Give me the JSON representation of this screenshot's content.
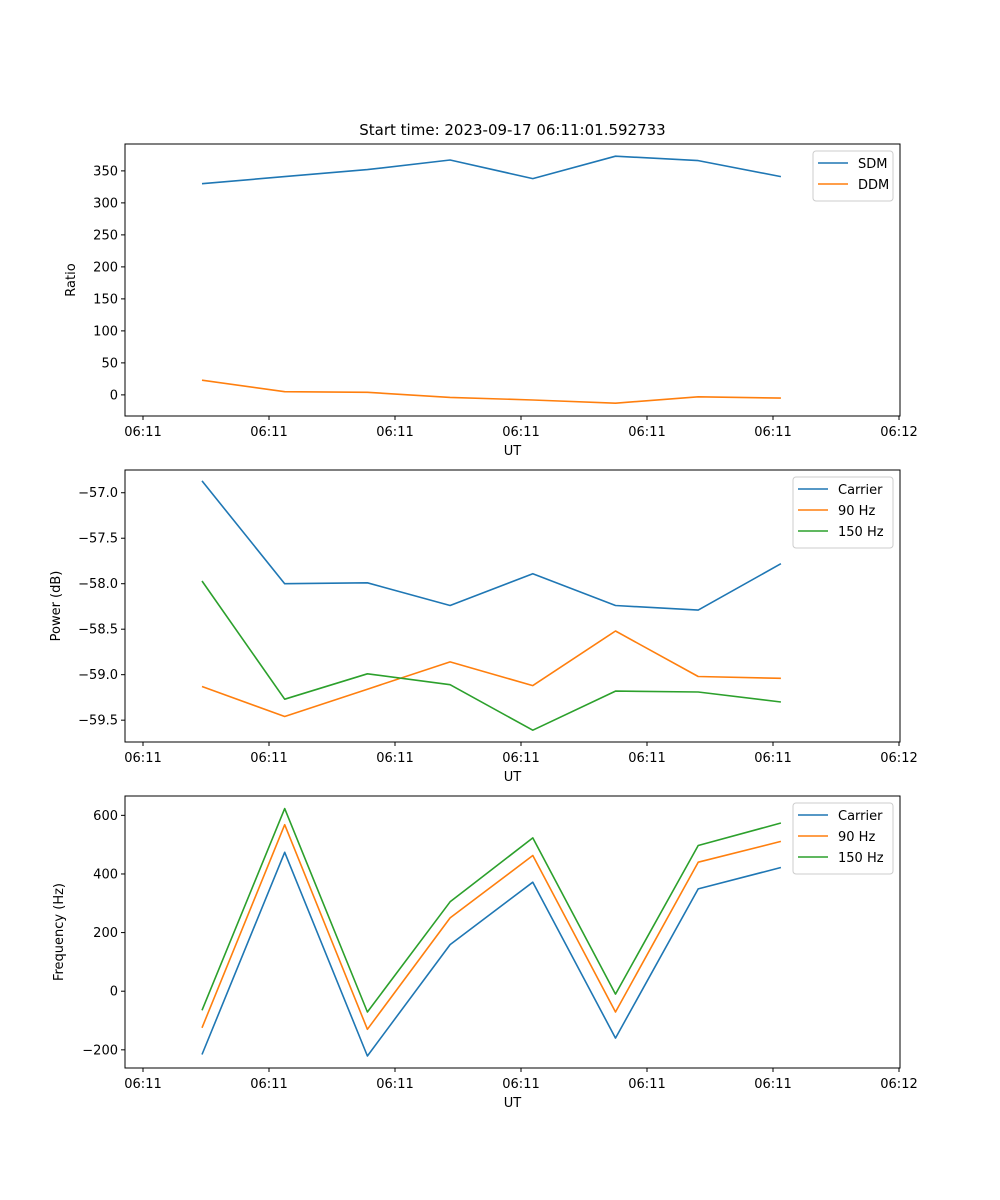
{
  "chart_data": [
    {
      "type": "line",
      "title": "Start time: 2023-09-17 06:11:01.592733",
      "xlabel": "UT",
      "ylabel": "Ratio",
      "x_ticks": [
        "06:11",
        "06:11",
        "06:11",
        "06:11",
        "06:11",
        "06:11",
        "06:12"
      ],
      "y_ticks": [
        "0",
        "50",
        "100",
        "150",
        "200",
        "250",
        "300",
        "350"
      ],
      "y_tick_values": [
        0,
        50,
        100,
        150,
        200,
        250,
        300,
        350
      ],
      "ylim": [
        -33,
        392
      ],
      "x_index_range": [
        -0.143,
        6.0
      ],
      "x": [
        0,
        1,
        2,
        3,
        4,
        5,
        6,
        7
      ],
      "legend": "top-right",
      "grid": false,
      "series": [
        {
          "name": "SDM",
          "color": "#1f77b4",
          "values": [
            330,
            341,
            352,
            367,
            338,
            373,
            366,
            341
          ]
        },
        {
          "name": "DDM",
          "color": "#ff7f0e",
          "values": [
            23,
            5,
            4,
            -4,
            -8,
            -13,
            -3,
            -5
          ]
        }
      ]
    },
    {
      "type": "line",
      "title": "",
      "xlabel": "UT",
      "ylabel": "Power (dB)",
      "x_ticks": [
        "06:11",
        "06:11",
        "06:11",
        "06:11",
        "06:11",
        "06:11",
        "06:12"
      ],
      "y_ticks": [
        "−57.0",
        "−57.5",
        "−58.0",
        "−58.5",
        "−59.0",
        "−59.5"
      ],
      "y_tick_values": [
        -57.0,
        -57.5,
        -58.0,
        -58.5,
        -59.0,
        -59.5
      ],
      "ylim": [
        -59.74,
        -56.75
      ],
      "x": [
        0,
        1,
        2,
        3,
        4,
        5,
        6,
        7
      ],
      "legend": "top-right",
      "grid": false,
      "series": [
        {
          "name": "Carrier",
          "color": "#1f77b4",
          "values": [
            -56.87,
            -58.0,
            -57.99,
            -58.24,
            -57.89,
            -58.24,
            -58.29,
            -57.78
          ]
        },
        {
          "name": "90 Hz",
          "color": "#ff7f0e",
          "values": [
            -59.13,
            -59.46,
            -59.16,
            -58.86,
            -59.12,
            -58.52,
            -59.02,
            -59.04
          ]
        },
        {
          "name": "150 Hz",
          "color": "#2ca02c",
          "values": [
            -57.97,
            -59.27,
            -58.99,
            -59.11,
            -59.61,
            -59.18,
            -59.19,
            -59.3
          ]
        }
      ]
    },
    {
      "type": "line",
      "title": "",
      "xlabel": "UT",
      "ylabel": "Frequency (Hz)",
      "x_ticks": [
        "06:11",
        "06:11",
        "06:11",
        "06:11",
        "06:11",
        "06:11",
        "06:12"
      ],
      "y_ticks": [
        "−200",
        "0",
        "200",
        "400",
        "600"
      ],
      "y_tick_values": [
        -200,
        0,
        200,
        400,
        600
      ],
      "ylim": [
        -262,
        666
      ],
      "x": [
        0,
        1,
        2,
        3,
        4,
        5,
        6,
        7
      ],
      "legend": "top-right",
      "grid": false,
      "series": [
        {
          "name": "Carrier",
          "color": "#1f77b4",
          "values": [
            -216,
            474,
            -221,
            159,
            372,
            -160,
            349,
            422
          ]
        },
        {
          "name": "90 Hz",
          "color": "#ff7f0e",
          "values": [
            -125,
            568,
            -130,
            250,
            463,
            -71,
            440,
            511
          ]
        },
        {
          "name": "150 Hz",
          "color": "#2ca02c",
          "values": [
            -65,
            623,
            -71,
            305,
            523,
            -10,
            497,
            574
          ]
        }
      ]
    }
  ]
}
